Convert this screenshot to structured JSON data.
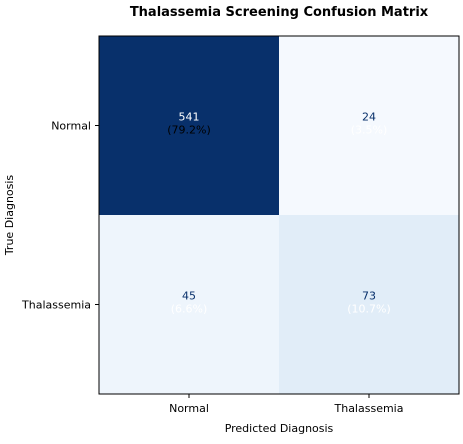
{
  "chart_data": {
    "type": "heatmap",
    "title": "Thalassemia Screening Confusion Matrix",
    "xlabel": "Predicted Diagnosis",
    "ylabel": "True Diagnosis",
    "x_categories": [
      "Normal",
      "Thalassemia"
    ],
    "y_categories": [
      "Normal",
      "Thalassemia"
    ],
    "cells": [
      {
        "row": 0,
        "col": 0,
        "value": 541,
        "percent_label": "(79.2%)",
        "fill": "#08306b"
      },
      {
        "row": 0,
        "col": 1,
        "value": 24,
        "percent_label": "(3.5%)",
        "fill": "#f5f9fe"
      },
      {
        "row": 1,
        "col": 0,
        "value": 45,
        "percent_label": "(6.6%)",
        "fill": "#eef5fc"
      },
      {
        "row": 1,
        "col": 1,
        "value": 73,
        "percent_label": "(10.7%)",
        "fill": "#e1edf8"
      }
    ],
    "colormap": "Blues",
    "count_text_color_dark_cell": "#ffffff",
    "count_text_color_light_cell": "#08306b",
    "percent_text_color_dark_cell": "#000000",
    "percent_text_color_light_cell": "#ffffff",
    "grid": false
  }
}
